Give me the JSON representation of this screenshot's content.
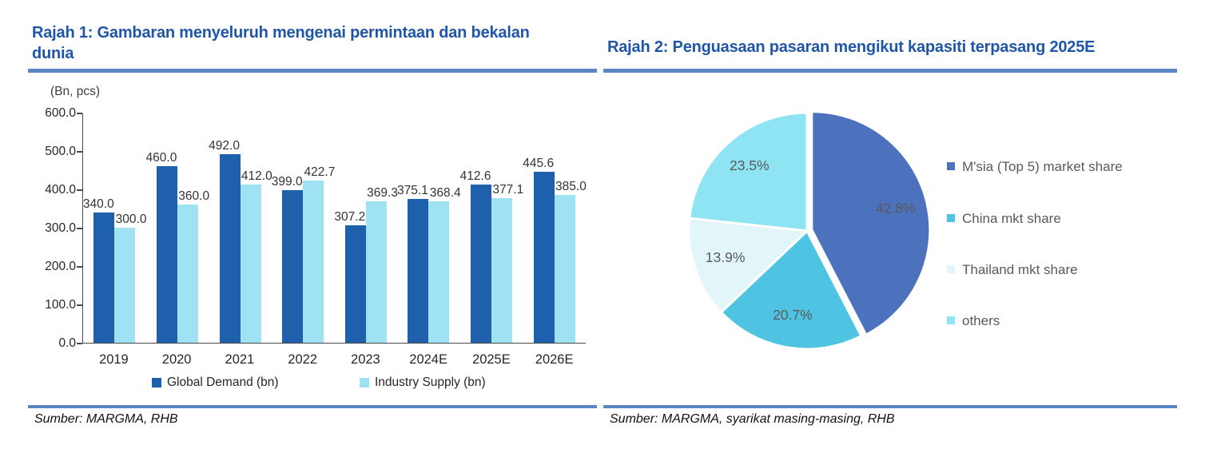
{
  "figure1": {
    "title": "Rajah 1: Gambaran menyeluruh mengenai permintaan dan bekalan dunia",
    "source": "Sumber: MARGMA, RHB"
  },
  "figure2": {
    "title": "Rajah 2: Penguasaan pasaran mengikut kapasiti terpasang 2025E",
    "source": "Sumber: MARGMA, syarikat masing-masing, RHB"
  },
  "colors": {
    "title_blue": "#2056A7",
    "rule_blue": "#5B87C7",
    "demand_bar": "#1F60AC",
    "supply_bar": "#9EE2F3",
    "axis_text": "#262626",
    "pie_label_gray": "#595959"
  },
  "chart_data": [
    {
      "type": "bar",
      "title": "Rajah 1: Gambaran menyeluruh mengenai permintaan dan bekalan dunia",
      "unit_label": "(Bn, pcs)",
      "categories": [
        "2019",
        "2020",
        "2021",
        "2022",
        "2023",
        "2024E",
        "2025E",
        "2026E"
      ],
      "series": [
        {
          "name": "Global Demand (bn)",
          "color": "#1F60AC",
          "values": [
            340.0,
            460.0,
            492.0,
            399.0,
            307.2,
            375.1,
            412.6,
            445.6
          ]
        },
        {
          "name": "Industry Supply (bn)",
          "color": "#9EE2F3",
          "values": [
            300.0,
            360.0,
            412.0,
            422.7,
            369.3,
            368.4,
            377.1,
            385.0
          ]
        }
      ],
      "ylim": [
        0,
        600
      ],
      "ytick_step": 100,
      "yticks": [
        "600.0",
        "500.0",
        "400.0",
        "300.0",
        "200.0",
        "100.0",
        "0.0"
      ],
      "grid": false,
      "legend_position": "bottom"
    },
    {
      "type": "pie",
      "title": "Rajah 2: Penguasaan pasaran mengikut kapasiti terpasang 2025E",
      "start_angle_deg": 0,
      "direction": "clockwise",
      "legend_position": "right",
      "slices": [
        {
          "label": "M'sia (Top 5) market share",
          "value": 42.8,
          "display": "42.8%",
          "color": "#4C72BE"
        },
        {
          "label": "China mkt share",
          "value": 20.7,
          "display": "20.7%",
          "color": "#4EC4E2"
        },
        {
          "label": "Thailand mkt share",
          "value": 13.9,
          "display": "13.9%",
          "color": "#E2F6FA"
        },
        {
          "label": "others",
          "value": 23.5,
          "display": "23.5%",
          "color": "#8FE4F4"
        }
      ]
    }
  ]
}
